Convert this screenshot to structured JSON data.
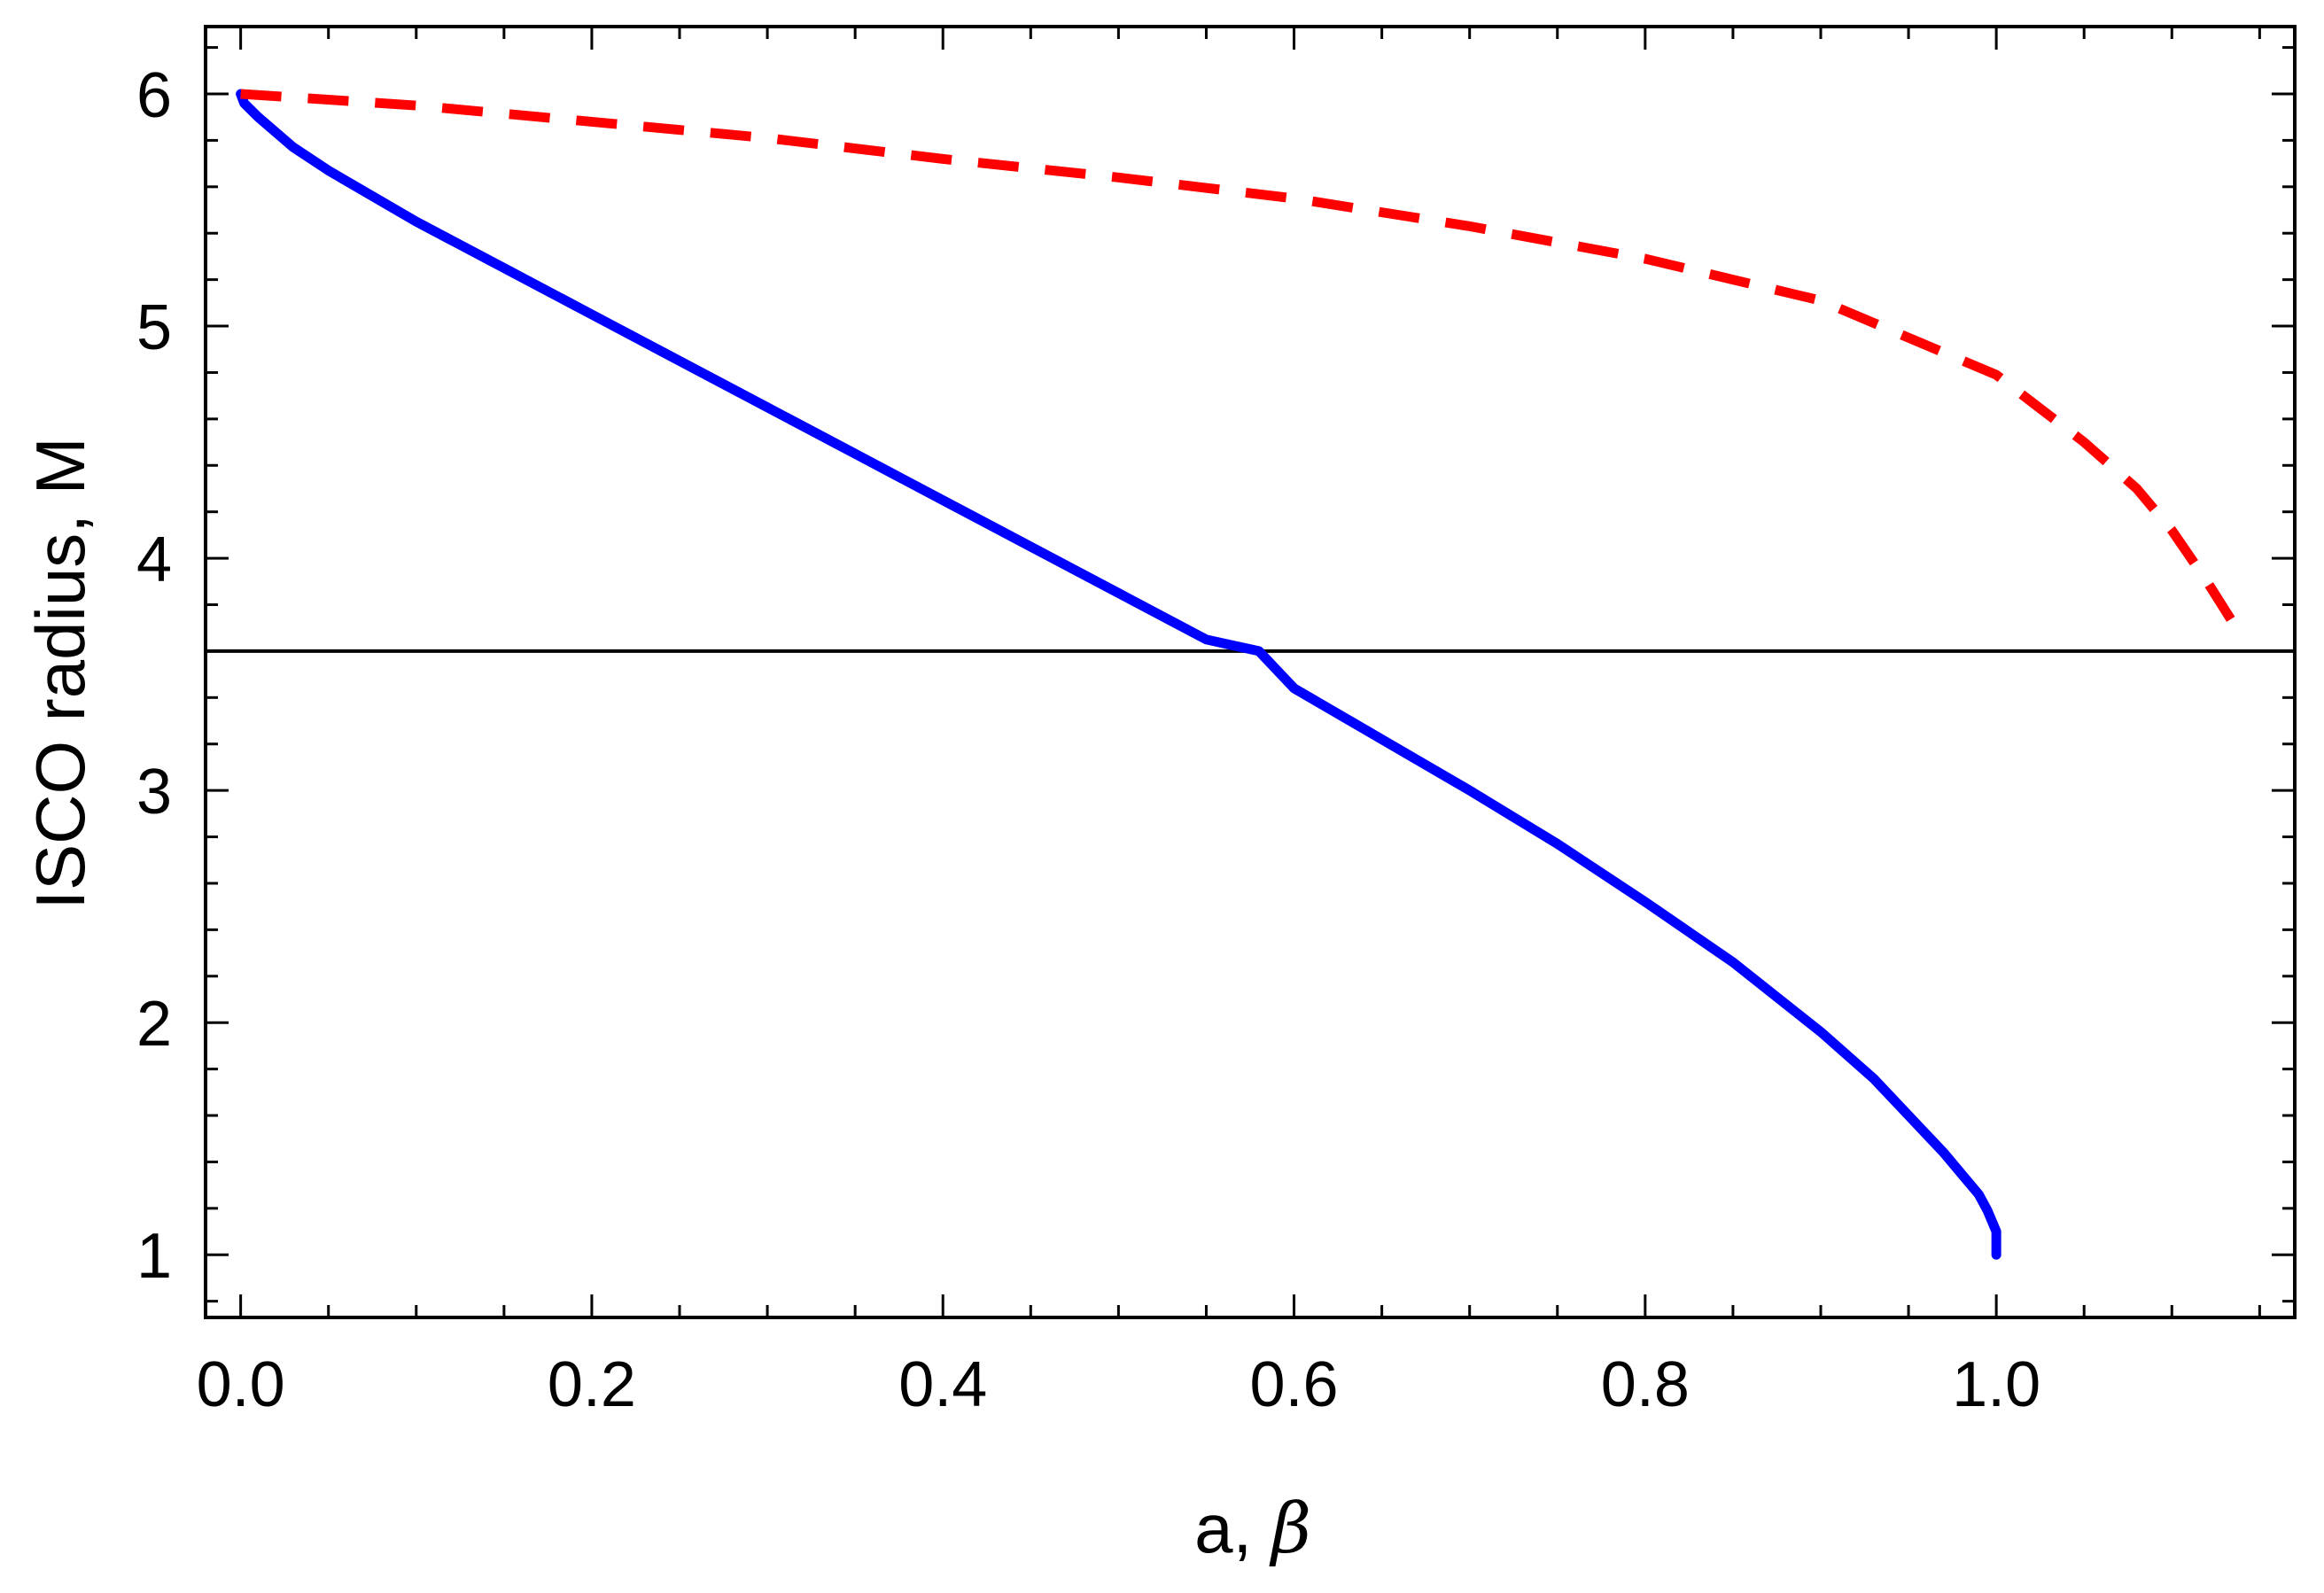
{
  "chart_data": {
    "type": "line",
    "title": "",
    "xlabel": "a, β",
    "xlabel_parts": {
      "plain": "a, ",
      "italic": "β"
    },
    "ylabel": "ISCO radius, M",
    "xlim": [
      -0.02,
      1.17
    ],
    "ylim": [
      0.73,
      6.29
    ],
    "x_ticks": [
      0.0,
      0.2,
      0.4,
      0.6,
      0.8,
      1.0
    ],
    "x_tick_labels": [
      "0.0",
      "0.2",
      "0.4",
      "0.6",
      "0.8",
      "1.0"
    ],
    "y_ticks": [
      1,
      2,
      3,
      4,
      5,
      6
    ],
    "y_tick_labels": [
      "1",
      "2",
      "3",
      "4",
      "5",
      "6"
    ],
    "grid": false,
    "legend": "none",
    "series": [
      {
        "style": "solid",
        "color": "#0000ff",
        "points": [
          [
            0.0,
            6.0
          ],
          [
            0.002,
            5.96
          ],
          [
            0.01,
            5.9
          ],
          [
            0.03,
            5.77
          ],
          [
            0.05,
            5.67
          ],
          [
            0.1,
            5.45
          ],
          [
            0.15,
            5.25
          ],
          [
            0.2,
            5.05
          ],
          [
            0.25,
            4.85
          ],
          [
            0.3,
            4.65
          ],
          [
            0.35,
            4.45
          ],
          [
            0.4,
            4.25
          ],
          [
            0.45,
            4.05
          ],
          [
            0.5,
            3.85
          ],
          [
            0.55,
            3.65
          ],
          [
            0.58,
            3.6
          ],
          [
            0.6,
            3.44
          ],
          [
            0.65,
            3.22
          ],
          [
            0.7,
            3.0
          ],
          [
            0.75,
            2.77
          ],
          [
            0.8,
            2.52
          ],
          [
            0.85,
            2.26
          ],
          [
            0.9,
            1.96
          ],
          [
            0.93,
            1.76
          ],
          [
            0.95,
            1.6
          ],
          [
            0.97,
            1.44
          ],
          [
            0.98,
            1.35
          ],
          [
            0.99,
            1.26
          ],
          [
            0.995,
            1.19
          ],
          [
            1.0,
            1.1
          ],
          [
            1.0,
            1.0
          ]
        ]
      },
      {
        "style": "dashed",
        "color": "#ff0000",
        "points": [
          [
            0.0,
            6.0
          ],
          [
            0.1,
            5.95
          ],
          [
            0.2,
            5.88
          ],
          [
            0.3,
            5.81
          ],
          [
            0.4,
            5.72
          ],
          [
            0.5,
            5.64
          ],
          [
            0.6,
            5.55
          ],
          [
            0.7,
            5.43
          ],
          [
            0.8,
            5.29
          ],
          [
            0.9,
            5.11
          ],
          [
            1.0,
            4.79
          ],
          [
            1.05,
            4.5
          ],
          [
            1.08,
            4.3
          ],
          [
            1.1,
            4.12
          ],
          [
            1.12,
            3.9
          ],
          [
            1.13,
            3.78
          ],
          [
            1.14,
            3.66
          ]
        ]
      }
    ],
    "reference_lines": [
      {
        "orientation": "horizontal",
        "y": 3.6,
        "color": "#000000"
      }
    ]
  }
}
